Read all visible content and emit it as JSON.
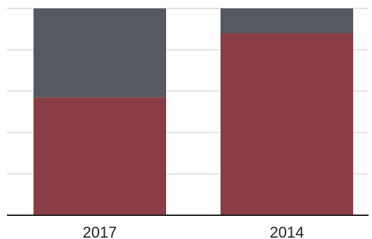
{
  "chart_data": {
    "type": "bar",
    "stacked": true,
    "categories": [
      "2017",
      "2014"
    ],
    "series": [
      {
        "values": [
          57,
          88
        ],
        "color": "#8b3d45"
      },
      {
        "values": [
          43,
          12
        ],
        "color": "#555a62"
      }
    ],
    "ylim": [
      0,
      100
    ],
    "grid": true,
    "grid_color": "#e2e2e2",
    "axis_color": "#1a1a1a",
    "legend": "none"
  }
}
